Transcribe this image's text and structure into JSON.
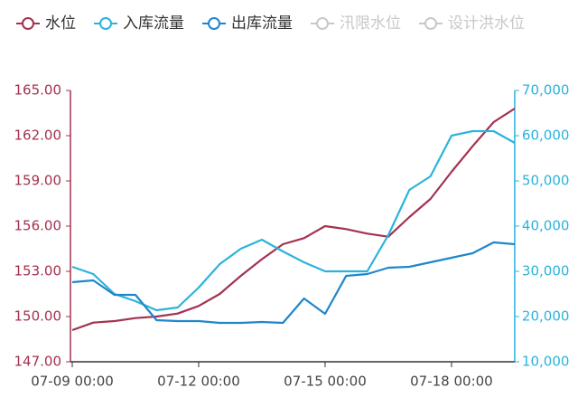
{
  "chart_data": {
    "type": "line",
    "categories": [
      "07-09 00:00",
      null,
      null,
      null,
      null,
      null,
      "07-12 00:00",
      null,
      null,
      null,
      null,
      null,
      "07-15 00:00",
      null,
      null,
      null,
      null,
      null,
      "07-18 00:00",
      null,
      null,
      null
    ],
    "series": [
      {
        "name": "水位",
        "color": "#a3324f",
        "axis": "y",
        "values": [
          149.1,
          149.6,
          149.7,
          149.9,
          150.0,
          150.2,
          150.7,
          151.5,
          152.7,
          153.8,
          154.8,
          155.2,
          156.0,
          155.8,
          155.5,
          155.3,
          156.6,
          157.8,
          159.6,
          161.3,
          162.9,
          163.8
        ]
      },
      {
        "name": "入库流量",
        "color": "#2bb3dc",
        "axis": "y2",
        "values": [
          31000,
          29400,
          25000,
          23400,
          21400,
          22000,
          26400,
          31600,
          35000,
          37000,
          34400,
          32000,
          30000,
          30000,
          30000,
          38000,
          48000,
          51000,
          60000,
          61000,
          61000,
          58400
        ]
      },
      {
        "name": "出库流量",
        "color": "#1f86cc",
        "axis": "y2",
        "values": [
          27600,
          28000,
          24800,
          24800,
          19200,
          19000,
          19000,
          18600,
          18600,
          18800,
          18600,
          24000,
          20600,
          29000,
          29400,
          30800,
          31000,
          32000,
          33000,
          34000,
          36400,
          36000
        ]
      }
    ],
    "hidden_series": [
      "汛限水位",
      "设计洪水位"
    ],
    "hidden_color": "#c8c8c8",
    "ylim": [
      147,
      165
    ],
    "yticks": [
      {
        "value": 147,
        "label": "147.00"
      },
      {
        "value": 150,
        "label": "150.00"
      },
      {
        "value": 153,
        "label": "153.00"
      },
      {
        "value": 156,
        "label": "156.00"
      },
      {
        "value": 159,
        "label": "159.00"
      },
      {
        "value": 162,
        "label": "162.00"
      },
      {
        "value": 165,
        "label": "165.00"
      }
    ],
    "y2lim": [
      10000,
      70000
    ],
    "y2ticks": [
      {
        "value": 10000,
        "label": "10,000"
      },
      {
        "value": 20000,
        "label": "20,000"
      },
      {
        "value": 30000,
        "label": "30,000"
      },
      {
        "value": 40000,
        "label": "40,000"
      },
      {
        "value": 50000,
        "label": "50,000"
      },
      {
        "value": 60000,
        "label": "60,000"
      },
      {
        "value": 70000,
        "label": "70,000"
      }
    ],
    "grid": false
  }
}
